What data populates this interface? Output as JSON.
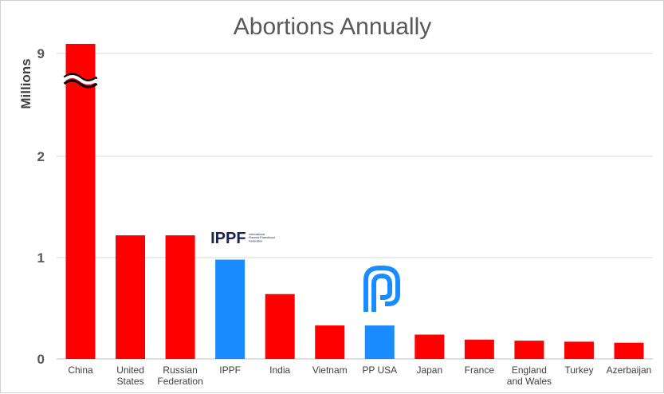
{
  "chart_data": {
    "type": "bar",
    "title": "Abortions Annually",
    "xlabel": "",
    "ylabel": "Millions",
    "axis_break": true,
    "y_ticks": [
      {
        "label": "0",
        "value": 0
      },
      {
        "label": "1",
        "value": 1
      },
      {
        "label": "2",
        "value": 2
      },
      {
        "label": "9",
        "value": 9
      }
    ],
    "grid": true,
    "categories": [
      {
        "lines": [
          "China"
        ],
        "value": 9.0,
        "color": "#ff0000",
        "broken": true
      },
      {
        "lines": [
          "United",
          "States"
        ],
        "value": 1.22,
        "color": "#ff0000"
      },
      {
        "lines": [
          "Russian",
          "Federation"
        ],
        "value": 1.22,
        "color": "#ff0000"
      },
      {
        "lines": [
          "IPPF"
        ],
        "value": 0.98,
        "color": "#1a8cff",
        "logo": "ippf"
      },
      {
        "lines": [
          "India"
        ],
        "value": 0.64,
        "color": "#ff0000"
      },
      {
        "lines": [
          "Vietnam"
        ],
        "value": 0.33,
        "color": "#ff0000"
      },
      {
        "lines": [
          "PP USA"
        ],
        "value": 0.33,
        "color": "#1a8cff",
        "logo": "ppusa"
      },
      {
        "lines": [
          "Japan"
        ],
        "value": 0.24,
        "color": "#ff0000"
      },
      {
        "lines": [
          "France"
        ],
        "value": 0.19,
        "color": "#ff0000"
      },
      {
        "lines": [
          "England",
          "and Wales"
        ],
        "value": 0.18,
        "color": "#ff0000"
      },
      {
        "lines": [
          "Turkey"
        ],
        "value": 0.17,
        "color": "#ff0000"
      },
      {
        "lines": [
          "Azerbaijan"
        ],
        "value": 0.16,
        "color": "#ff0000"
      }
    ],
    "logos": {
      "ippf": {
        "name": "IPPF",
        "subtitle_lines": [
          "International",
          "Planned Parenthood",
          "Federation"
        ],
        "color": "#1a2350"
      },
      "ppusa": {
        "color": "#1a8cff"
      }
    },
    "colors": {
      "gridline": "#d9d9d9",
      "axis": "#bfbfbf",
      "title": "#595959"
    }
  }
}
